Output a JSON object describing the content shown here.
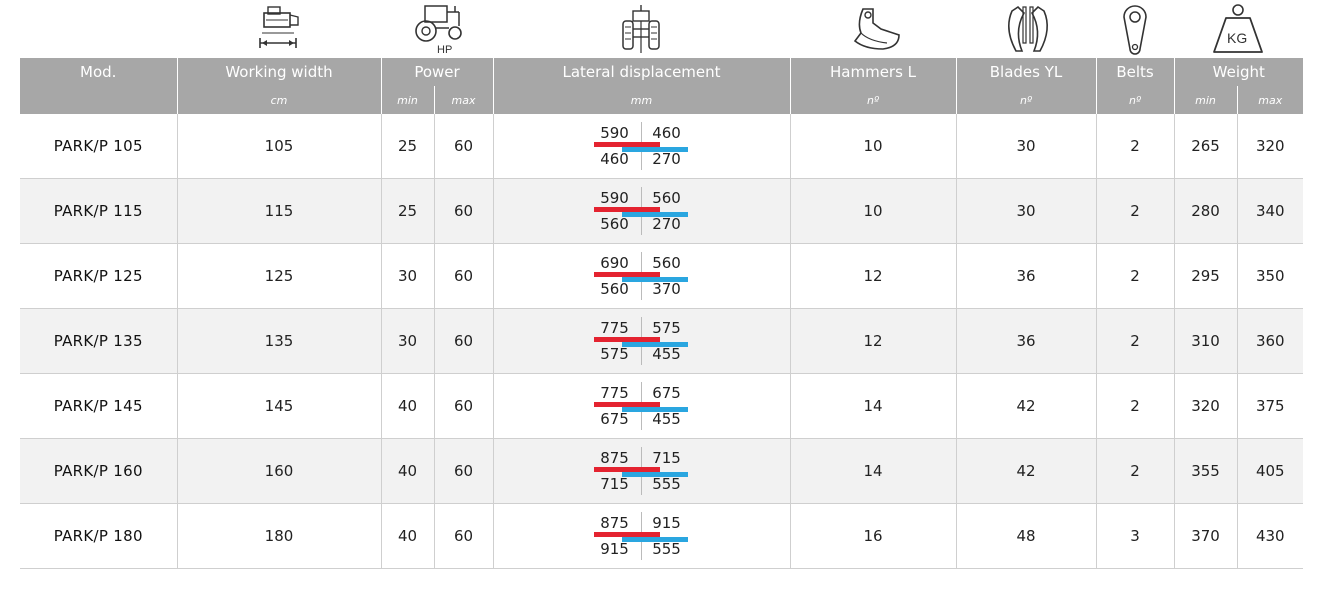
{
  "icons": [
    "mower-width-icon",
    "tractor-hp-icon",
    "lateral-displacement-icon",
    "hammer-icon",
    "blades-icon",
    "belt-icon",
    "weight-kg-icon"
  ],
  "icon_labels": {
    "hp": "HP",
    "kg": "KG"
  },
  "colors": {
    "header_bg": "#a7a7a7",
    "row_alt": "#f2f2f2",
    "red_bar": "#e42330",
    "blue_bar": "#2aa6e0"
  },
  "headers": {
    "mod": "Mod.",
    "working_width": "Working width",
    "power": "Power",
    "lateral": "Lateral displacement",
    "hammers": "Hammers L",
    "blades": "Blades YL",
    "belts": "Belts",
    "weight": "Weight"
  },
  "units": {
    "working_width": "cm",
    "power_min": "min",
    "power_max": "max",
    "lateral": "mm",
    "hammers": "nº",
    "blades": "nº",
    "belts": "nº",
    "weight_min": "min",
    "weight_max": "max"
  },
  "rows": [
    {
      "model": "PARK/P 105",
      "width": "105",
      "power_min": "25",
      "power_max": "60",
      "disp": {
        "tl": "590",
        "tr": "460",
        "bl": "460",
        "br": "270"
      },
      "hammers": "10",
      "blades": "30",
      "belts": "2",
      "weight_min": "265",
      "weight_max": "320"
    },
    {
      "model": "PARK/P 115",
      "width": "115",
      "power_min": "25",
      "power_max": "60",
      "disp": {
        "tl": "590",
        "tr": "560",
        "bl": "560",
        "br": "270"
      },
      "hammers": "10",
      "blades": "30",
      "belts": "2",
      "weight_min": "280",
      "weight_max": "340"
    },
    {
      "model": "PARK/P 125",
      "width": "125",
      "power_min": "30",
      "power_max": "60",
      "disp": {
        "tl": "690",
        "tr": "560",
        "bl": "560",
        "br": "370"
      },
      "hammers": "12",
      "blades": "36",
      "belts": "2",
      "weight_min": "295",
      "weight_max": "350"
    },
    {
      "model": "PARK/P 135",
      "width": "135",
      "power_min": "30",
      "power_max": "60",
      "disp": {
        "tl": "775",
        "tr": "575",
        "bl": "575",
        "br": "455"
      },
      "hammers": "12",
      "blades": "36",
      "belts": "2",
      "weight_min": "310",
      "weight_max": "360"
    },
    {
      "model": "PARK/P 145",
      "width": "145",
      "power_min": "40",
      "power_max": "60",
      "disp": {
        "tl": "775",
        "tr": "675",
        "bl": "675",
        "br": "455"
      },
      "hammers": "14",
      "blades": "42",
      "belts": "2",
      "weight_min": "320",
      "weight_max": "375"
    },
    {
      "model": "PARK/P 160",
      "width": "160",
      "power_min": "40",
      "power_max": "60",
      "disp": {
        "tl": "875",
        "tr": "715",
        "bl": "715",
        "br": "555"
      },
      "hammers": "14",
      "blades": "42",
      "belts": "2",
      "weight_min": "355",
      "weight_max": "405"
    },
    {
      "model": "PARK/P 180",
      "width": "180",
      "power_min": "40",
      "power_max": "60",
      "disp": {
        "tl": "875",
        "tr": "915",
        "bl": "915",
        "br": "555"
      },
      "hammers": "16",
      "blades": "48",
      "belts": "3",
      "weight_min": "370",
      "weight_max": "430"
    }
  ]
}
